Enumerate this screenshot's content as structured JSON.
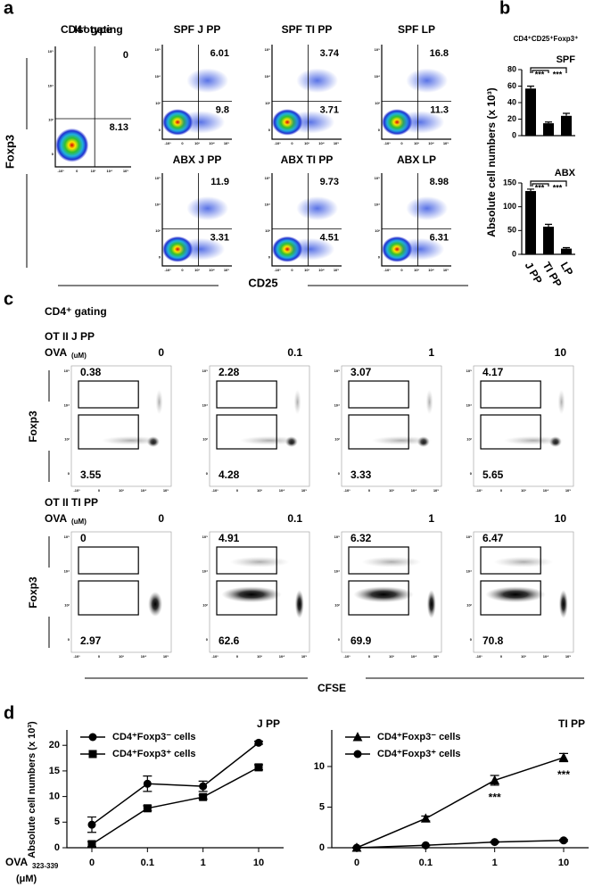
{
  "panel_labels": [
    "a",
    "b",
    "c",
    "d"
  ],
  "flow_ticks": {
    "y": [
      "10⁵",
      "10⁴",
      "10³",
      "0"
    ],
    "x": [
      "-10³",
      "0",
      "10³",
      "10⁴",
      "10⁵"
    ]
  },
  "panel_a": {
    "title": "CD4⁺ gating",
    "y_label": "Foxp3",
    "x_label": "CD25",
    "plots": [
      {
        "label": "Isotype",
        "upper": "0",
        "lower": "8.13"
      },
      {
        "label": "SPF J PP",
        "upper": "6.01",
        "lower": "9.8"
      },
      {
        "label": "SPF TI PP",
        "upper": "3.74",
        "lower": "3.71"
      },
      {
        "label": "SPF LP",
        "upper": "16.8",
        "lower": "11.3"
      },
      {
        "label": "ABX J PP",
        "upper": "11.9",
        "lower": "3.31"
      },
      {
        "label": "ABX TI PP",
        "upper": "9.73",
        "lower": "4.51"
      },
      {
        "label": "ABX LP",
        "upper": "8.98",
        "lower": "6.31"
      }
    ]
  },
  "panel_c": {
    "title": "CD4⁺ gating",
    "ova_label": "OVA",
    "ova_unit": "(uM)",
    "y_label": "Foxp3",
    "x_label": "CFSE",
    "concentrations": [
      "0",
      "0.1",
      "1",
      "10"
    ],
    "rows": [
      {
        "label": "OT II J PP",
        "upper": [
          "0.38",
          "2.28",
          "3.07",
          "4.17"
        ],
        "lower": [
          "3.55",
          "4.28",
          "3.33",
          "5.65"
        ]
      },
      {
        "label": "OT II TI PP",
        "upper": [
          "0",
          "4.91",
          "6.32",
          "6.47"
        ],
        "lower": [
          "2.97",
          "62.6",
          "69.9",
          "70.8"
        ]
      }
    ]
  },
  "chart_data": [
    {
      "type": "bar",
      "title": "CD4⁺CD25⁺Foxp3⁺",
      "subtitle": "SPF",
      "y_label": "Absolute cell numbers (x 10³)",
      "categories": [
        null,
        null,
        null
      ],
      "values": [
        57,
        15,
        24
      ],
      "errors": [
        3,
        1.5,
        3
      ],
      "color": "#000000",
      "ylim": [
        0,
        80
      ],
      "yticks": [
        0,
        20,
        40,
        60,
        80
      ],
      "comparisons": [
        "***",
        "***"
      ]
    },
    {
      "type": "bar",
      "subtitle": "ABX",
      "categories": [
        "J PP",
        "TI PP",
        "LP"
      ],
      "values": [
        133,
        58,
        12
      ],
      "errors": [
        4,
        5,
        2
      ],
      "color": "#000000",
      "ylim": [
        0,
        150
      ],
      "yticks": [
        0,
        50,
        100,
        150
      ],
      "comparisons": [
        "***",
        "***"
      ]
    },
    {
      "type": "line",
      "title": "J PP",
      "y_label": "Absolute cell numbers (x 10³)",
      "x_label": "OVA",
      "x_label_sub": "323-339",
      "x_label_unit": "(μM)",
      "categories": [
        "0",
        "0.1",
        "1",
        "10"
      ],
      "ylim": [
        0,
        23
      ],
      "yticks": [
        0,
        5,
        10,
        15,
        20
      ],
      "series": [
        {
          "name": "CD4⁺Foxp3⁻ cells",
          "marker": "circle",
          "color": "#000000",
          "values": [
            4.5,
            12.5,
            12,
            20.5
          ],
          "errors": [
            1.5,
            1.5,
            1,
            0.3
          ]
        },
        {
          "name": "CD4⁺Foxp3⁺ cells",
          "marker": "square",
          "color": "#000000",
          "values": [
            0.7,
            7.7,
            9.9,
            15.7
          ],
          "errors": [
            0.5,
            0.5,
            0.4,
            0.5
          ]
        }
      ]
    },
    {
      "type": "line",
      "title": "TI PP",
      "categories": [
        "0",
        "0.1",
        "1",
        "10"
      ],
      "ylim": [
        0,
        14.5
      ],
      "yticks": [
        0,
        5,
        10
      ],
      "series": [
        {
          "name": "CD4⁺Foxp3⁻ cells",
          "marker": "triangle",
          "color": "#000000",
          "values": [
            0,
            3.6,
            8.3,
            11.1
          ],
          "errors": [
            0.05,
            0.3,
            0.6,
            0.5
          ],
          "annotations": [
            null,
            null,
            "***",
            "***"
          ]
        },
        {
          "name": "CD4⁺Foxp3⁺ cells",
          "marker": "circle",
          "color": "#000000",
          "values": [
            0,
            0.3,
            0.7,
            0.9
          ],
          "errors": [
            0.02,
            0.05,
            0.1,
            0.1
          ]
        }
      ]
    }
  ]
}
